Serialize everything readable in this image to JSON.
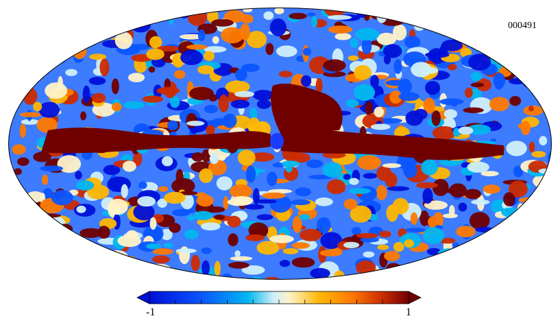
{
  "map": {
    "id_label": "000491",
    "projection": "mollweide",
    "features": [
      "random-temperature-fluctuations",
      "galactic-plane-band",
      "dark-red-north-structure"
    ]
  },
  "colorbar": {
    "min_label": "-1",
    "max_label": "1",
    "colors": [
      "#0010d8",
      "#0a55ff",
      "#00b7f0",
      "#cfeff9",
      "#fff2c8",
      "#ffb600",
      "#ff7a00",
      "#cc2b00",
      "#700000"
    ],
    "ticks": 10
  }
}
